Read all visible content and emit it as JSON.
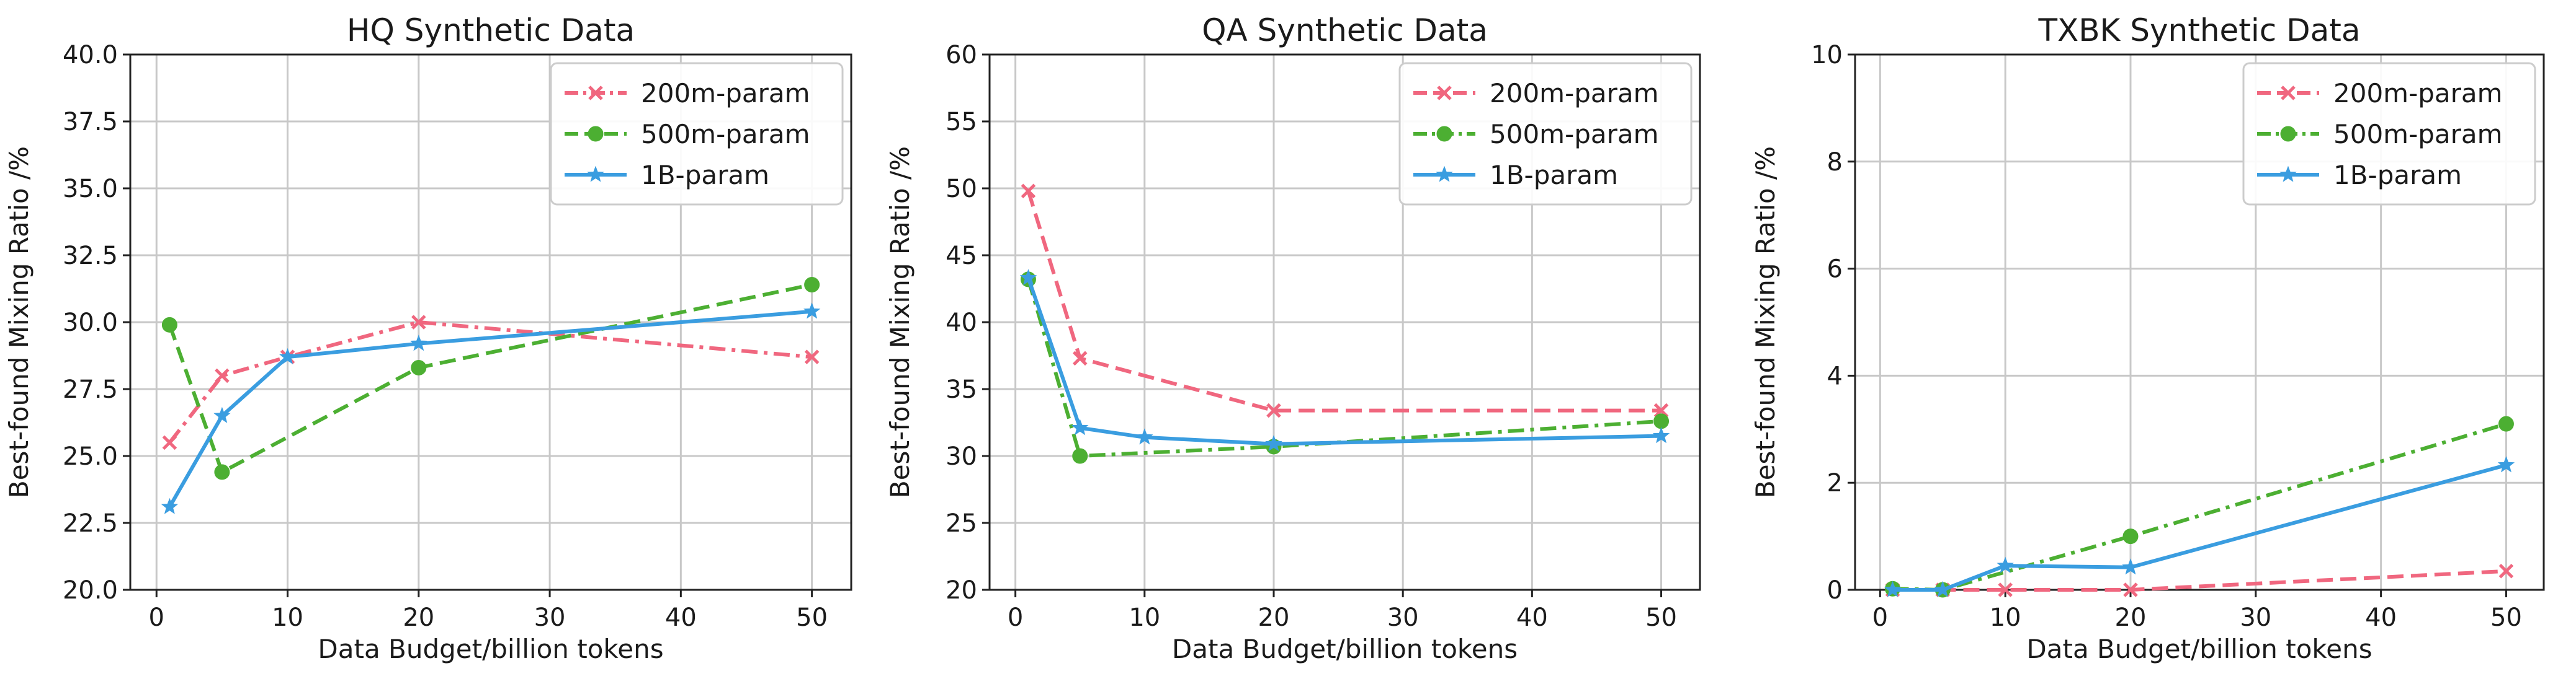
{
  "chart_data": [
    {
      "type": "line",
      "title": "HQ Synthetic Data",
      "xlabel": "Data Budget/billion tokens",
      "ylabel": "Best-found Mixing Ratio /%",
      "xlim": [
        -2,
        53
      ],
      "ylim": [
        20,
        40
      ],
      "xticks": [
        0,
        10,
        20,
        30,
        40,
        50
      ],
      "yticks": [
        20.0,
        22.5,
        25.0,
        27.5,
        30.0,
        32.5,
        35.0,
        37.5,
        40.0
      ],
      "ytick_labels": [
        "20.0",
        "22.5",
        "25.0",
        "27.5",
        "30.0",
        "32.5",
        "35.0",
        "37.5",
        "40.0"
      ],
      "legend_position": "top-right",
      "grid": true,
      "series": [
        {
          "name": "200m-param",
          "color": "#f0677f",
          "marker": "x",
          "dash": "dashdot",
          "x": [
            1,
            5,
            10,
            20,
            50
          ],
          "y": [
            25.5,
            28.0,
            28.7,
            30.0,
            28.7
          ]
        },
        {
          "name": "500m-param",
          "color": "#4caf32",
          "marker": "circle",
          "dash": "dashed",
          "x": [
            1,
            5,
            20,
            50
          ],
          "y": [
            29.9,
            24.4,
            28.3,
            31.4
          ]
        },
        {
          "name": "1B-param",
          "color": "#3a9de0",
          "marker": "star",
          "dash": "solid",
          "x": [
            1,
            5,
            10,
            20,
            50
          ],
          "y": [
            23.1,
            26.5,
            28.7,
            29.2,
            30.4
          ]
        }
      ]
    },
    {
      "type": "line",
      "title": "QA Synthetic Data",
      "xlabel": "Data Budget/billion tokens",
      "ylabel": "Best-found Mixing Ratio /%",
      "xlim": [
        -2,
        53
      ],
      "ylim": [
        20,
        60
      ],
      "xticks": [
        0,
        10,
        20,
        30,
        40,
        50
      ],
      "yticks": [
        20,
        25,
        30,
        35,
        40,
        45,
        50,
        55,
        60
      ],
      "ytick_labels": [
        "20",
        "25",
        "30",
        "35",
        "40",
        "45",
        "50",
        "55",
        "60"
      ],
      "legend_position": "top-right",
      "grid": true,
      "series": [
        {
          "name": "200m-param",
          "color": "#f0677f",
          "marker": "x",
          "dash": "dashed",
          "x": [
            1,
            5,
            20,
            50
          ],
          "y": [
            49.8,
            37.3,
            33.4,
            33.4
          ]
        },
        {
          "name": "500m-param",
          "color": "#4caf32",
          "marker": "circle",
          "dash": "dashdot",
          "x": [
            1,
            5,
            20,
            50
          ],
          "y": [
            43.2,
            30.0,
            30.7,
            32.6
          ]
        },
        {
          "name": "1B-param",
          "color": "#3a9de0",
          "marker": "star",
          "dash": "solid",
          "x": [
            1,
            5,
            10,
            20,
            50
          ],
          "y": [
            43.3,
            32.1,
            31.4,
            30.9,
            31.5
          ]
        }
      ]
    },
    {
      "type": "line",
      "title": "TXBK Synthetic Data",
      "xlabel": "Data Budget/billion tokens",
      "ylabel": "Best-found Mixing Ratio /%",
      "xlim": [
        -2,
        53
      ],
      "ylim": [
        0,
        10
      ],
      "xticks": [
        0,
        10,
        20,
        30,
        40,
        50
      ],
      "yticks": [
        0,
        2,
        4,
        6,
        8,
        10
      ],
      "ytick_labels": [
        "0",
        "2",
        "4",
        "6",
        "8",
        "10"
      ],
      "legend_position": "top-right",
      "grid": true,
      "series": [
        {
          "name": "200m-param",
          "color": "#f0677f",
          "marker": "x",
          "dash": "dashed",
          "x": [
            1,
            5,
            10,
            20,
            50
          ],
          "y": [
            0.0,
            0.0,
            0.0,
            0.0,
            0.35
          ]
        },
        {
          "name": "500m-param",
          "color": "#4caf32",
          "marker": "circle",
          "dash": "dashdot",
          "x": [
            1,
            5,
            20,
            50
          ],
          "y": [
            0.02,
            0.0,
            1.0,
            3.1
          ]
        },
        {
          "name": "1B-param",
          "color": "#3a9de0",
          "marker": "star",
          "dash": "solid",
          "x": [
            1,
            5,
            10,
            20,
            50
          ],
          "y": [
            0.0,
            0.0,
            0.45,
            0.42,
            2.33
          ]
        }
      ]
    }
  ]
}
